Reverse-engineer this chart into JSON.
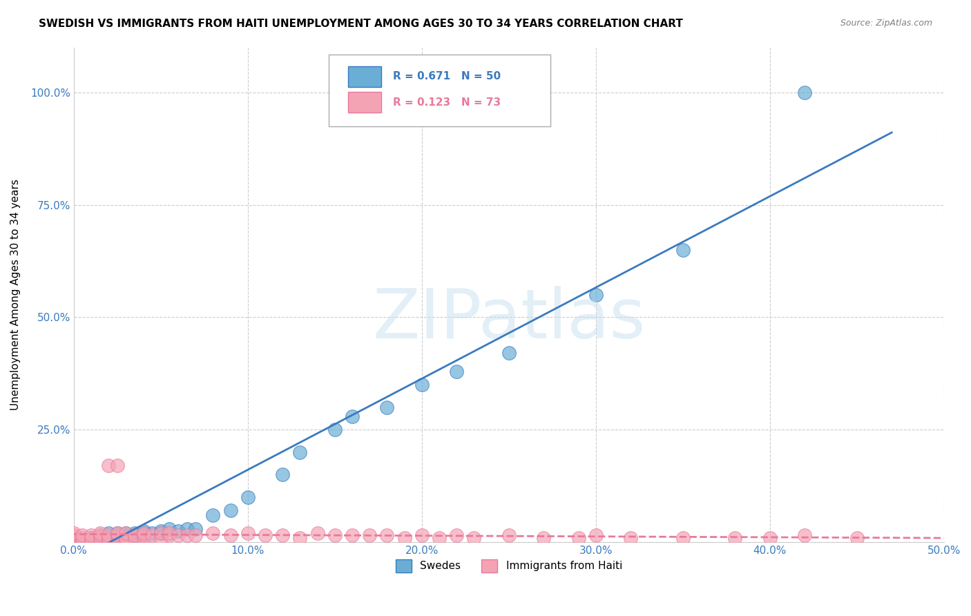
{
  "title": "SWEDISH VS IMMIGRANTS FROM HAITI UNEMPLOYMENT AMONG AGES 30 TO 34 YEARS CORRELATION CHART",
  "source": "Source: ZipAtlas.com",
  "ylabel": "Unemployment Among Ages 30 to 34 years",
  "legend_blue_label": "Swedes",
  "legend_pink_label": "Immigrants from Haiti",
  "r_blue": 0.671,
  "n_blue": 50,
  "r_pink": 0.123,
  "n_pink": 73,
  "blue_color": "#6aaed6",
  "pink_color": "#f4a3b5",
  "blue_line_color": "#3a7abf",
  "pink_line_color": "#e87a9a",
  "watermark": "ZIPatlas",
  "xlim": [
    0.0,
    0.5
  ],
  "ylim": [
    0.0,
    1.1
  ],
  "yticks": [
    0.0,
    0.25,
    0.5,
    0.75,
    1.0
  ],
  "ytick_labels": [
    "",
    "25.0%",
    "50.0%",
    "75.0%",
    "100.0%"
  ],
  "xticks": [
    0.0,
    0.1,
    0.2,
    0.3,
    0.4,
    0.5
  ],
  "xtick_labels": [
    "0.0%",
    "10.0%",
    "20.0%",
    "30.0%",
    "40.0%",
    "50.0%"
  ],
  "grid_color": "#cccccc",
  "bg_color": "#ffffff",
  "swedes_x": [
    0.0,
    0.0,
    0.0,
    0.0,
    0.0,
    0.0,
    0.005,
    0.005,
    0.01,
    0.01,
    0.01,
    0.012,
    0.013,
    0.015,
    0.015,
    0.015,
    0.02,
    0.02,
    0.02,
    0.022,
    0.025,
    0.025,
    0.025,
    0.03,
    0.03,
    0.035,
    0.035,
    0.04,
    0.04,
    0.045,
    0.05,
    0.05,
    0.055,
    0.06,
    0.065,
    0.07,
    0.08,
    0.09,
    0.1,
    0.12,
    0.13,
    0.15,
    0.16,
    0.18,
    0.2,
    0.22,
    0.25,
    0.3,
    0.35,
    0.42
  ],
  "swedes_y": [
    0.0,
    0.0,
    0.005,
    0.005,
    0.01,
    0.01,
    0.0,
    0.005,
    0.005,
    0.01,
    0.01,
    0.005,
    0.01,
    0.005,
    0.01,
    0.015,
    0.005,
    0.01,
    0.02,
    0.01,
    0.01,
    0.015,
    0.02,
    0.015,
    0.02,
    0.015,
    0.02,
    0.02,
    0.025,
    0.02,
    0.02,
    0.025,
    0.03,
    0.025,
    0.03,
    0.03,
    0.06,
    0.07,
    0.1,
    0.15,
    0.2,
    0.25,
    0.28,
    0.3,
    0.35,
    0.38,
    0.42,
    0.55,
    0.65,
    1.0
  ],
  "haiti_x": [
    0.0,
    0.0,
    0.0,
    0.0,
    0.0,
    0.0,
    0.0,
    0.0,
    0.0,
    0.005,
    0.005,
    0.005,
    0.005,
    0.005,
    0.01,
    0.01,
    0.01,
    0.01,
    0.015,
    0.015,
    0.015,
    0.015,
    0.02,
    0.02,
    0.02,
    0.02,
    0.025,
    0.025,
    0.025,
    0.025,
    0.025,
    0.03,
    0.03,
    0.03,
    0.035,
    0.035,
    0.04,
    0.04,
    0.04,
    0.045,
    0.05,
    0.05,
    0.055,
    0.055,
    0.06,
    0.065,
    0.07,
    0.08,
    0.09,
    0.1,
    0.11,
    0.12,
    0.13,
    0.14,
    0.15,
    0.16,
    0.17,
    0.18,
    0.19,
    0.2,
    0.21,
    0.22,
    0.23,
    0.25,
    0.27,
    0.29,
    0.3,
    0.32,
    0.35,
    0.38,
    0.4,
    0.42,
    0.45
  ],
  "haiti_y": [
    0.0,
    0.0,
    0.0,
    0.005,
    0.005,
    0.01,
    0.01,
    0.015,
    0.02,
    0.0,
    0.005,
    0.005,
    0.01,
    0.015,
    0.005,
    0.005,
    0.01,
    0.015,
    0.005,
    0.01,
    0.015,
    0.02,
    0.005,
    0.01,
    0.015,
    0.17,
    0.005,
    0.01,
    0.015,
    0.02,
    0.17,
    0.005,
    0.01,
    0.02,
    0.01,
    0.015,
    0.01,
    0.015,
    0.02,
    0.015,
    0.01,
    0.02,
    0.015,
    0.02,
    0.015,
    0.015,
    0.015,
    0.02,
    0.015,
    0.02,
    0.015,
    0.015,
    0.01,
    0.02,
    0.015,
    0.015,
    0.015,
    0.015,
    0.01,
    0.015,
    0.01,
    0.015,
    0.01,
    0.015,
    0.01,
    0.01,
    0.015,
    0.01,
    0.01,
    0.01,
    0.01,
    0.015,
    0.01
  ]
}
